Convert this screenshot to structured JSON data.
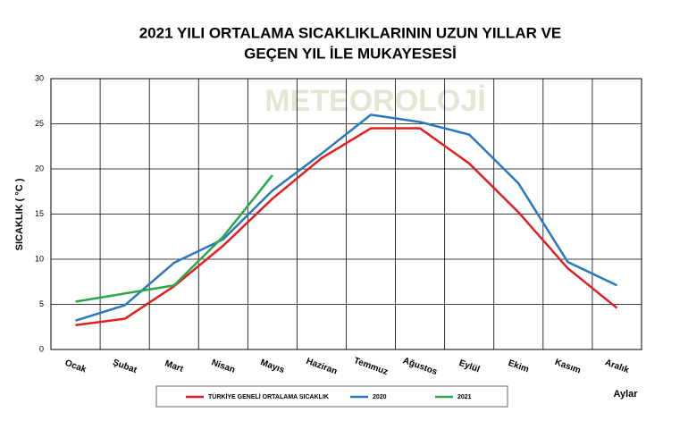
{
  "chart_data": {
    "type": "line",
    "title": [
      "2021 YILI ORTALAMA SICAKLIKLARININ UZUN YILLAR VE",
      "GEÇEN  YIL İLE MUKAYESESİ"
    ],
    "watermark": "METEOROLOJİ",
    "y_label": "SICAKLIK ( °C )",
    "x_label": "Aylar",
    "categories": [
      "Ocak",
      "Şubat",
      "Mart",
      "Nisan",
      "Mayıs",
      "Haziran",
      "Temmuz",
      "Ağustos",
      "Eylül",
      "Ekim",
      "Kasım",
      "Aralık"
    ],
    "series": [
      {
        "name": "TÜRKİYE GENELİ ORTALAMA  SICAKLIK",
        "color": "#e02020",
        "values": [
          2.7,
          3.4,
          7.0,
          11.5,
          16.7,
          21.2,
          24.5,
          24.5,
          20.6,
          15.2,
          9.0,
          4.6
        ]
      },
      {
        "name": "2020",
        "color": "#2a78c0",
        "values": [
          3.2,
          4.9,
          9.6,
          12.2,
          17.6,
          21.7,
          26.0,
          25.2,
          23.8,
          18.4,
          9.7,
          7.1
        ]
      },
      {
        "name": "2021",
        "color": "#2aa84a",
        "values": [
          5.3,
          6.2,
          7.1,
          12.5,
          19.3,
          null,
          null,
          null,
          null,
          null,
          null,
          null
        ]
      }
    ],
    "ylim": [
      0,
      30
    ],
    "yticks": [
      0,
      5,
      10,
      15,
      20,
      25,
      30
    ],
    "grid": true,
    "legend": "bottom"
  }
}
